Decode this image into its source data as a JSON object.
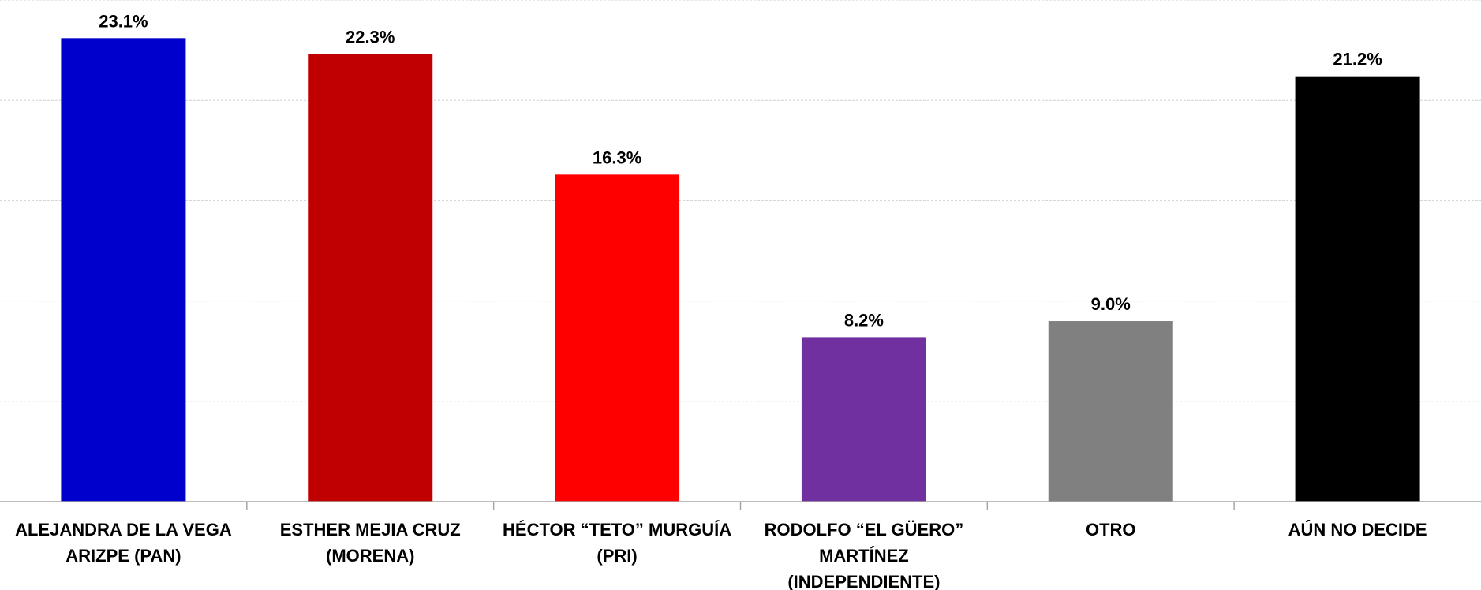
{
  "chart_data": {
    "type": "bar",
    "categories": [
      [
        "ALEJANDRA DE LA VEGA",
        "ARIZPE (PAN)"
      ],
      [
        "ESTHER MEJIA CRUZ",
        "(MORENA)"
      ],
      [
        "HÉCTOR “TETO” MURGUÍA",
        "(PRI)"
      ],
      [
        "RODOLFO “EL GÜERO”",
        "MARTÍNEZ",
        "(INDEPENDIENTE)"
      ],
      [
        "OTRO"
      ],
      [
        "AÚN NO DECIDE"
      ]
    ],
    "values": [
      23.1,
      22.3,
      16.3,
      8.2,
      9.0,
      21.2
    ],
    "value_labels": [
      "23.1%",
      "22.3%",
      "16.3%",
      "8.2%",
      "9.0%",
      "21.2%"
    ],
    "bar_colors": [
      "#0000CC",
      "#C00000",
      "#FF0000",
      "#7030A0",
      "#808080",
      "#000000"
    ],
    "ylim": [
      0,
      25
    ],
    "grid": true,
    "legend": "none"
  }
}
